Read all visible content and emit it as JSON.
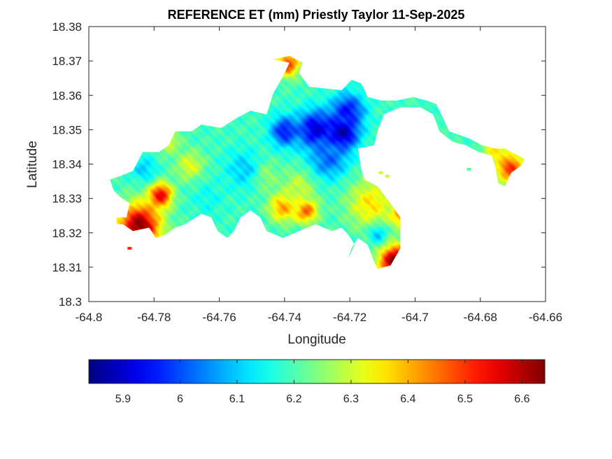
{
  "chart_data": {
    "type": "heatmap",
    "title": "REFERENCE ET (mm) Priestly Taylor 11-Sep-2025",
    "xlabel": "Longitude",
    "ylabel": "Latitude",
    "xlim": [
      -64.8,
      -64.66
    ],
    "ylim": [
      18.3,
      18.38
    ],
    "xticks": [
      -64.8,
      -64.78,
      -64.76,
      -64.74,
      -64.72,
      -64.7,
      -64.68,
      -64.66
    ],
    "yticks": [
      18.3,
      18.31,
      18.32,
      18.33,
      18.34,
      18.35,
      18.36,
      18.37,
      18.38
    ],
    "xtick_labels": [
      "-64.8",
      "-64.78",
      "-64.76",
      "-64.74",
      "-64.72",
      "-64.7",
      "-64.68",
      "-64.66"
    ],
    "ytick_labels": [
      "18.3",
      "18.31",
      "18.32",
      "18.33",
      "18.34",
      "18.35",
      "18.36",
      "18.37",
      "18.38"
    ],
    "colorbar": {
      "colormap": "jet",
      "orientation": "horizontal",
      "range": [
        5.84,
        6.64
      ],
      "ticks": [
        5.9,
        6.0,
        6.1,
        6.2,
        6.3,
        6.4,
        6.5,
        6.6
      ],
      "tick_labels": [
        "5.9",
        "6",
        "6.1",
        "6.2",
        "6.3",
        "6.4",
        "6.5",
        "6.6"
      ]
    },
    "grid": false,
    "island_outline": [
      [
        -64.7935,
        18.3355
      ],
      [
        -64.7905,
        18.3365
      ],
      [
        -64.7865,
        18.338
      ],
      [
        -64.7835,
        18.3435
      ],
      [
        -64.7785,
        18.3435
      ],
      [
        -64.7755,
        18.3455
      ],
      [
        -64.7735,
        18.3495
      ],
      [
        -64.7685,
        18.3495
      ],
      [
        -64.7655,
        18.3515
      ],
      [
        -64.7595,
        18.3505
      ],
      [
        -64.7545,
        18.3535
      ],
      [
        -64.7505,
        18.3555
      ],
      [
        -64.7455,
        18.3545
      ],
      [
        -64.7435,
        18.3605
      ],
      [
        -64.7405,
        18.3655
      ],
      [
        -64.7385,
        18.3695
      ],
      [
        -64.7435,
        18.3705
      ],
      [
        -64.7385,
        18.3715
      ],
      [
        -64.7345,
        18.3695
      ],
      [
        -64.7355,
        18.3665
      ],
      [
        -64.7325,
        18.3625
      ],
      [
        -64.7225,
        18.3615
      ],
      [
        -64.7195,
        18.3645
      ],
      [
        -64.7165,
        18.3635
      ],
      [
        -64.7145,
        18.3595
      ],
      [
        -64.7105,
        18.3585
      ],
      [
        -64.7055,
        18.3585
      ],
      [
        -64.7005,
        18.3595
      ],
      [
        -64.6965,
        18.3585
      ],
      [
        -64.6935,
        18.3575
      ],
      [
        -64.6915,
        18.3535
      ],
      [
        -64.6895,
        18.3495
      ],
      [
        -64.6835,
        18.3475
      ],
      [
        -64.6795,
        18.3455
      ],
      [
        -64.6755,
        18.3445
      ],
      [
        -64.6725,
        18.3445
      ],
      [
        -64.6705,
        18.3435
      ],
      [
        -64.6665,
        18.3415
      ],
      [
        -64.6675,
        18.3395
      ],
      [
        -64.6705,
        18.3375
      ],
      [
        -64.6725,
        18.3335
      ],
      [
        -64.6745,
        18.3345
      ],
      [
        -64.6755,
        18.3395
      ],
      [
        -64.6765,
        18.3425
      ],
      [
        -64.6805,
        18.3435
      ],
      [
        -64.6845,
        18.3455
      ],
      [
        -64.6885,
        18.3465
      ],
      [
        -64.6925,
        18.3495
      ],
      [
        -64.6945,
        18.3545
      ],
      [
        -64.6985,
        18.3565
      ],
      [
        -64.7045,
        18.3565
      ],
      [
        -64.7095,
        18.3545
      ],
      [
        -64.7115,
        18.3495
      ],
      [
        -64.7125,
        18.3455
      ],
      [
        -64.7175,
        18.3445
      ],
      [
        -64.7165,
        18.3385
      ],
      [
        -64.7155,
        18.3355
      ],
      [
        -64.7115,
        18.3335
      ],
      [
        -64.7075,
        18.3285
      ],
      [
        -64.7045,
        18.3245
      ],
      [
        -64.7045,
        18.3195
      ],
      [
        -64.7045,
        18.3155
      ],
      [
        -64.7075,
        18.3105
      ],
      [
        -64.7115,
        18.3095
      ],
      [
        -64.7125,
        18.3115
      ],
      [
        -64.7145,
        18.3165
      ],
      [
        -64.7175,
        18.3185
      ],
      [
        -64.7195,
        18.3155
      ],
      [
        -64.7205,
        18.3125
      ],
      [
        -64.7185,
        18.3165
      ],
      [
        -64.7205,
        18.3195
      ],
      [
        -64.7225,
        18.3215
      ],
      [
        -64.7255,
        18.3205
      ],
      [
        -64.7305,
        18.3225
      ],
      [
        -64.7355,
        18.3205
      ],
      [
        -64.7405,
        18.3185
      ],
      [
        -64.7455,
        18.3205
      ],
      [
        -64.7475,
        18.3245
      ],
      [
        -64.7505,
        18.3265
      ],
      [
        -64.7535,
        18.3245
      ],
      [
        -64.7555,
        18.3205
      ],
      [
        -64.7575,
        18.3185
      ],
      [
        -64.7605,
        18.3205
      ],
      [
        -64.7625,
        18.3245
      ],
      [
        -64.7655,
        18.3255
      ],
      [
        -64.7705,
        18.3225
      ],
      [
        -64.7735,
        18.3215
      ],
      [
        -64.7765,
        18.3195
      ],
      [
        -64.7795,
        18.3185
      ],
      [
        -64.7815,
        18.3215
      ],
      [
        -64.7865,
        18.3205
      ],
      [
        -64.7895,
        18.3225
      ],
      [
        -64.7915,
        18.3225
      ],
      [
        -64.7915,
        18.3245
      ],
      [
        -64.7885,
        18.3245
      ],
      [
        -64.7875,
        18.3285
      ],
      [
        -64.7905,
        18.3305
      ],
      [
        -64.7925,
        18.3325
      ],
      [
        -64.7935,
        18.3355
      ]
    ],
    "isolated_pixels": [
      [
        -64.7875,
        18.3155
      ],
      [
        -64.7085,
        18.3365
      ],
      [
        -64.7105,
        18.3375
      ],
      [
        -64.6835,
        18.3385
      ]
    ],
    "value_field": {
      "background": 6.19,
      "hotspots": [
        {
          "lon": -64.7845,
          "lat": 18.322,
          "value": 6.64,
          "spread": 0.0045
        },
        {
          "lon": -64.778,
          "lat": 18.331,
          "value": 6.56,
          "spread": 0.0025
        },
        {
          "lon": -64.706,
          "lat": 18.3115,
          "value": 6.66,
          "spread": 0.0035
        },
        {
          "lon": -64.671,
          "lat": 18.339,
          "value": 6.52,
          "spread": 0.003
        },
        {
          "lon": -64.739,
          "lat": 18.369,
          "value": 6.5,
          "spread": 0.0025
        },
        {
          "lon": -64.7335,
          "lat": 18.3265,
          "value": 6.48,
          "spread": 0.0025
        },
        {
          "lon": -64.7405,
          "lat": 18.3275,
          "value": 6.42,
          "spread": 0.003
        },
        {
          "lon": -64.704,
          "lat": 18.3255,
          "value": 6.46,
          "spread": 0.0025
        },
        {
          "lon": -64.7135,
          "lat": 18.3285,
          "value": 6.36,
          "spread": 0.005
        },
        {
          "lon": -64.769,
          "lat": 18.3395,
          "value": 6.32,
          "spread": 0.003
        },
        {
          "lon": -64.7355,
          "lat": 18.3335,
          "value": 6.3,
          "spread": 0.0035
        },
        {
          "lon": -64.747,
          "lat": 18.337,
          "value": 6.3,
          "spread": 0.003
        },
        {
          "lon": -64.776,
          "lat": 18.347,
          "value": 6.33,
          "spread": 0.0025
        },
        {
          "lon": -64.675,
          "lat": 18.344,
          "value": 6.36,
          "spread": 0.003
        },
        {
          "lon": -64.7225,
          "lat": 18.349,
          "value": 5.84,
          "spread": 0.0035
        },
        {
          "lon": -64.7305,
          "lat": 18.35,
          "value": 5.9,
          "spread": 0.004
        },
        {
          "lon": -64.7205,
          "lat": 18.3555,
          "value": 5.95,
          "spread": 0.0035
        },
        {
          "lon": -64.74,
          "lat": 18.3495,
          "value": 5.95,
          "spread": 0.003
        },
        {
          "lon": -64.7265,
          "lat": 18.3415,
          "value": 6.02,
          "spread": 0.004
        },
        {
          "lon": -64.7525,
          "lat": 18.3385,
          "value": 6.1,
          "spread": 0.004
        },
        {
          "lon": -64.783,
          "lat": 18.3385,
          "value": 6.1,
          "spread": 0.0025
        },
        {
          "lon": -64.7115,
          "lat": 18.3195,
          "value": 6.1,
          "spread": 0.002
        },
        {
          "lon": -64.7635,
          "lat": 18.33,
          "value": 6.15,
          "spread": 0.0035
        }
      ]
    }
  }
}
